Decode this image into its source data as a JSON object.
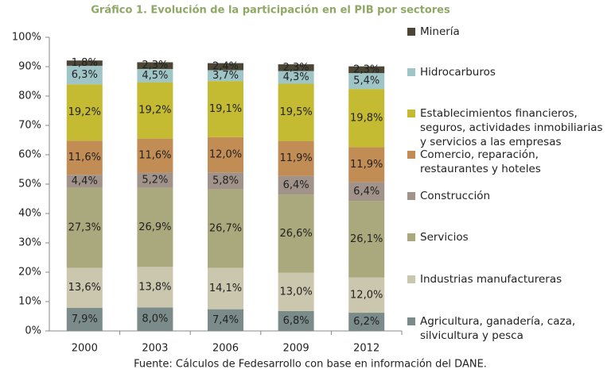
{
  "chart_data": {
    "type": "stacked_bar",
    "title": "Gráfico 1. Evolución de la participación en el PIB por sectores",
    "source": "Fuente: Cálculos de Fedesarrollo con base en información del DANE.",
    "categories": [
      "2000",
      "2003",
      "2006",
      "2009",
      "2012"
    ],
    "ylim": [
      0,
      100
    ],
    "yticks": [
      {
        "value": 0,
        "label": "0%"
      },
      {
        "value": 10,
        "label": "10%"
      },
      {
        "value": 20,
        "label": "20%"
      },
      {
        "value": 30,
        "label": "30%"
      },
      {
        "value": 40,
        "label": "40%"
      },
      {
        "value": 50,
        "label": "50%"
      },
      {
        "value": 60,
        "label": "60%"
      },
      {
        "value": 70,
        "label": "70%"
      },
      {
        "value": 80,
        "label": "80%"
      },
      {
        "value": 90,
        "label": "90%"
      },
      {
        "value": 100,
        "label": "100%"
      }
    ],
    "series": [
      {
        "name": "Agricultura, ganadería, caza, silvicultura y pesca",
        "color": "#7b8b89",
        "values": [
          7.9,
          8.0,
          7.4,
          6.8,
          6.2
        ],
        "value_labels": [
          "7,9%",
          "8,0%",
          "7,4%",
          "6,8%",
          "6,2%"
        ]
      },
      {
        "name": "Industrias manufactureras",
        "color": "#cbc6ae",
        "values": [
          13.6,
          13.8,
          14.1,
          13.0,
          12.0
        ],
        "value_labels": [
          "13,6%",
          "13,8%",
          "14,1%",
          "13,0%",
          "12,0%"
        ]
      },
      {
        "name": "Servicios",
        "color": "#aaa97e",
        "values": [
          27.3,
          26.9,
          26.7,
          26.6,
          26.1
        ],
        "value_labels": [
          "27,3%",
          "26,9%",
          "26,7%",
          "26,6%",
          "26,1%"
        ]
      },
      {
        "name": "Construcción",
        "color": "#a1938a",
        "values": [
          4.4,
          5.2,
          5.8,
          6.4,
          6.4
        ],
        "value_labels": [
          "4,4%",
          "5,2%",
          "5,8%",
          "6,4%",
          "6,4%"
        ]
      },
      {
        "name": "Comercio, reparación, restaurantes y hoteles",
        "color": "#c28c55",
        "values": [
          11.6,
          11.6,
          12.0,
          11.9,
          11.9
        ],
        "value_labels": [
          "11,6%",
          "11,6%",
          "12,0%",
          "11,9%",
          "11,9%"
        ]
      },
      {
        "name": "Establecimientos financieros, seguros, actividades inmobiliarias y servicios a las empresas",
        "color": "#c4bb32",
        "values": [
          19.2,
          19.2,
          19.1,
          19.5,
          19.8
        ],
        "value_labels": [
          "19,2%",
          "19,2%",
          "19,1%",
          "19,5%",
          "19,8%"
        ]
      },
      {
        "name": "Hidrocarburos",
        "color": "#9fc5c7",
        "values": [
          6.3,
          4.5,
          3.7,
          4.3,
          5.4
        ],
        "value_labels": [
          "6,3%",
          "4,5%",
          "3,7%",
          "4,3%",
          "5,4%"
        ]
      },
      {
        "name": "Minería",
        "color": "#4b4636",
        "values": [
          1.8,
          2.3,
          2.4,
          2.3,
          2.3
        ],
        "value_labels": [
          "1,8%",
          "2,3%",
          "2,4%",
          "2,3%",
          "2,3%"
        ]
      }
    ]
  }
}
